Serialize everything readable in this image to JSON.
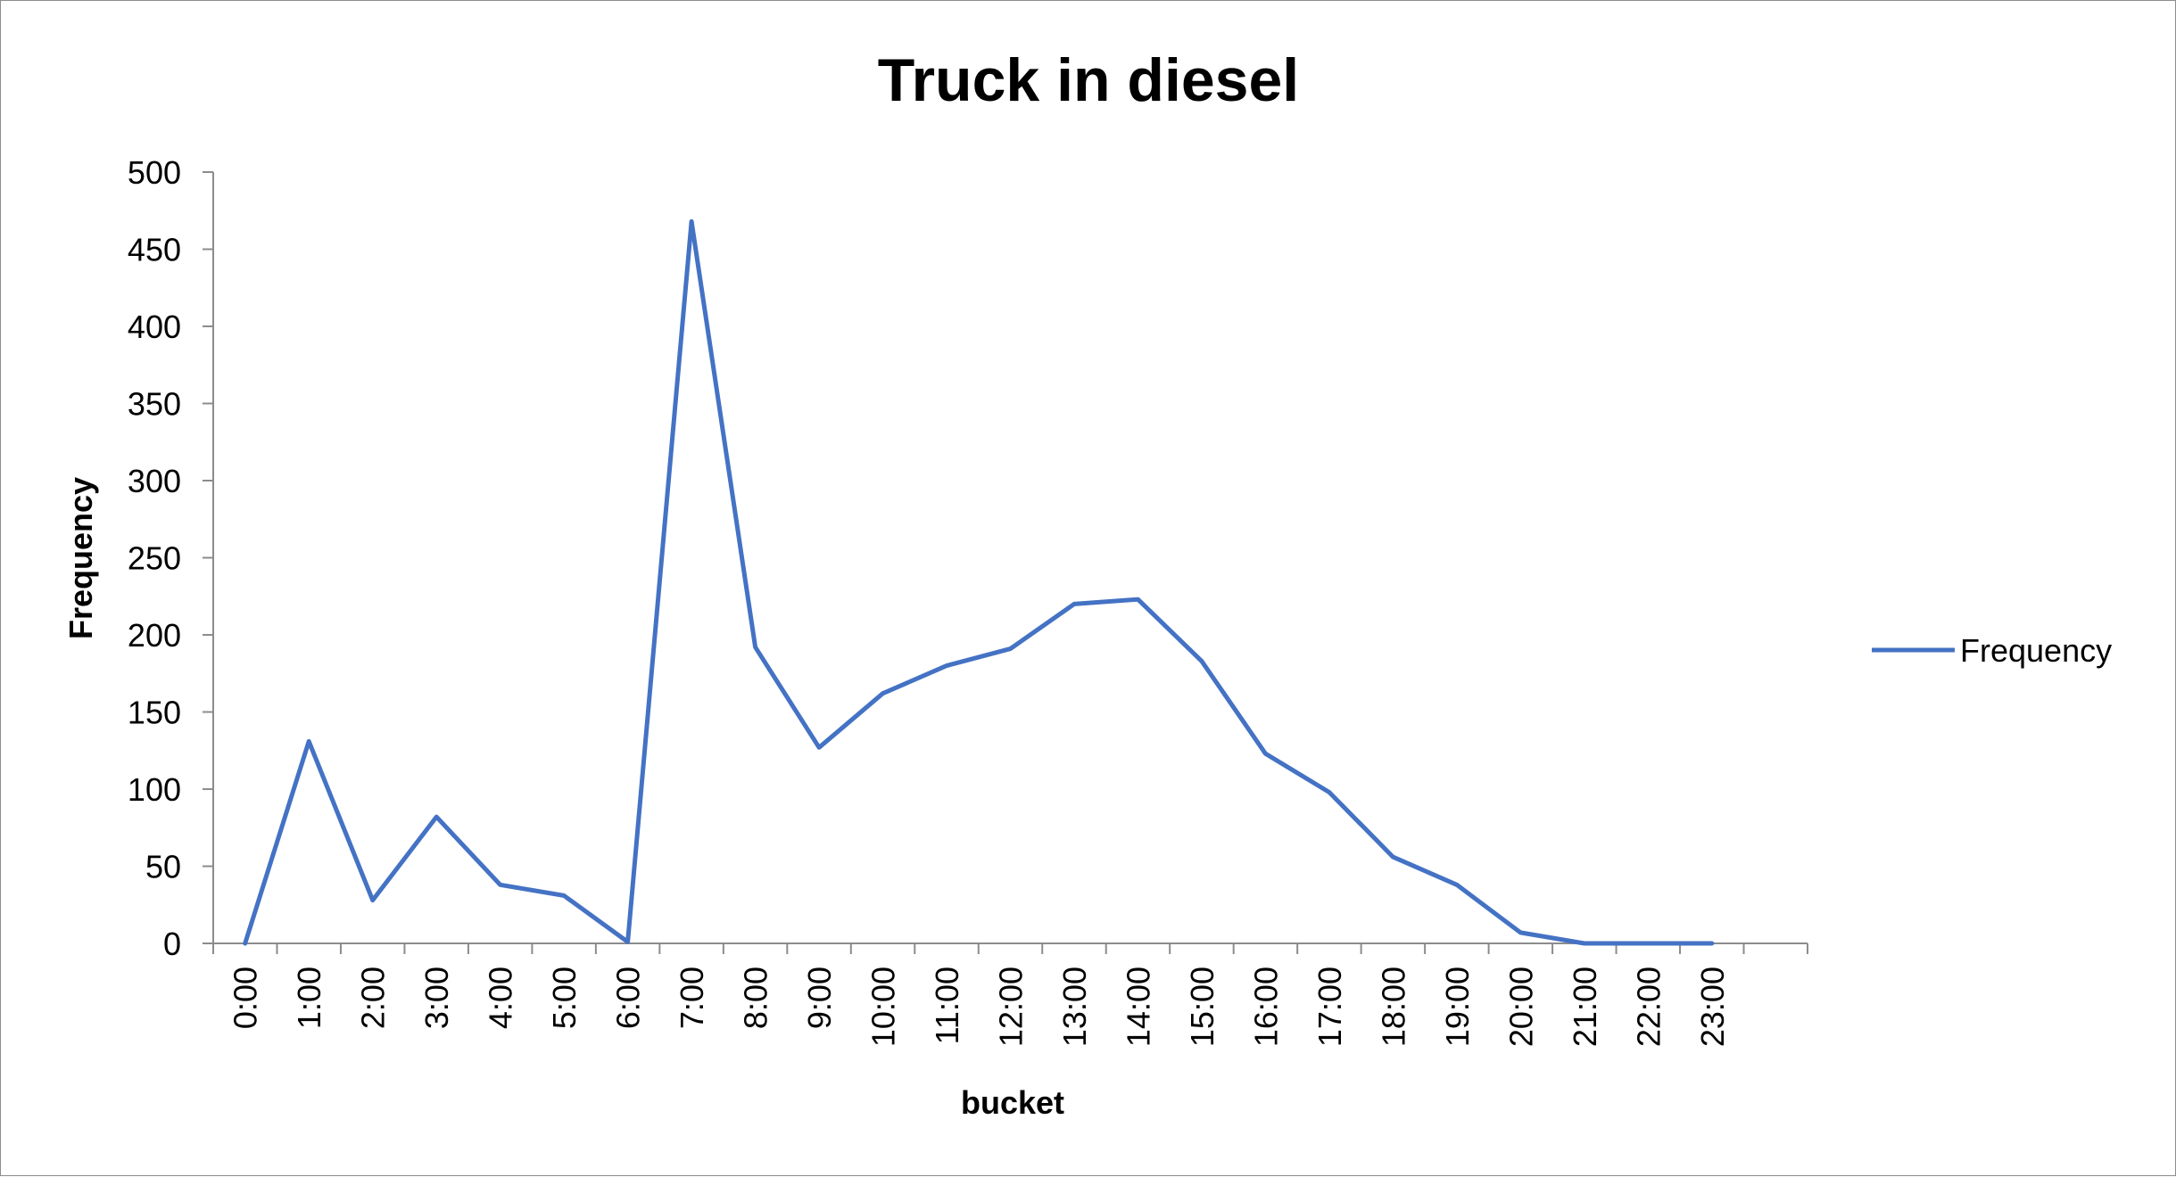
{
  "chart_data": {
    "type": "line",
    "title": "Truck in diesel",
    "xlabel": "bucket",
    "ylabel": "Frequency",
    "ylim": [
      0,
      500
    ],
    "yticks": [
      0,
      50,
      100,
      150,
      200,
      250,
      300,
      350,
      400,
      450,
      500
    ],
    "categories": [
      "0:00",
      "1:00",
      "2:00",
      "3:00",
      "4:00",
      "5:00",
      "6:00",
      "7:00",
      "8:00",
      "9:00",
      "10:00",
      "11:00",
      "12:00",
      "13:00",
      "14:00",
      "15:00",
      "16:00",
      "17:00",
      "18:00",
      "19:00",
      "20:00",
      "21:00",
      "22:00",
      "23:00"
    ],
    "series": [
      {
        "name": "Frequency",
        "color": "#4472C4",
        "values": [
          0,
          131,
          28,
          82,
          38,
          31,
          1,
          468,
          192,
          127,
          162,
          180,
          191,
          220,
          223,
          183,
          123,
          98,
          56,
          38,
          7,
          0,
          0,
          0
        ]
      }
    ],
    "grid": false,
    "legend_position": "right"
  }
}
